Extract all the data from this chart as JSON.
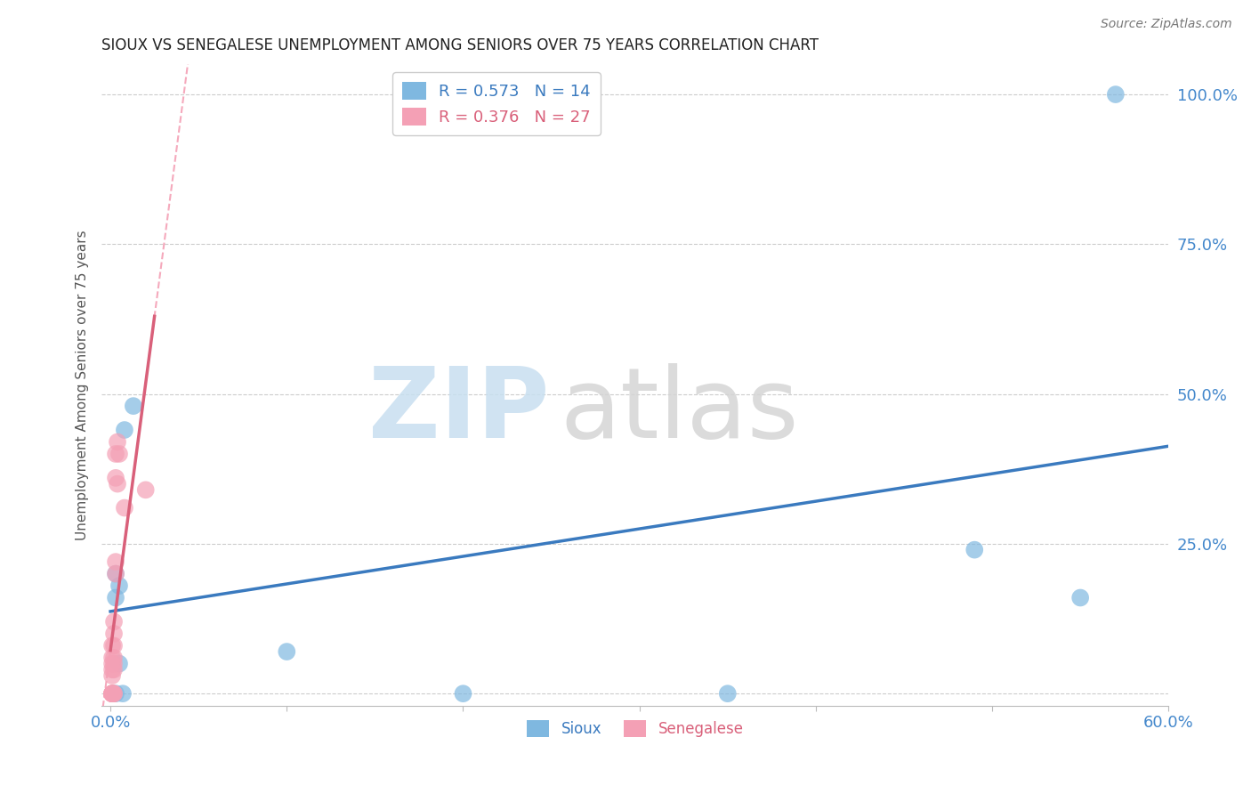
{
  "title": "SIOUX VS SENEGALESE UNEMPLOYMENT AMONG SENIORS OVER 75 YEARS CORRELATION CHART",
  "source": "Source: ZipAtlas.com",
  "ylabel": "Unemployment Among Seniors over 75 years",
  "xlim_display": [
    -0.005,
    0.6
  ],
  "ylim_display": [
    -0.02,
    1.05
  ],
  "xticks": [
    0.0,
    0.1,
    0.2,
    0.3,
    0.4,
    0.5,
    0.6
  ],
  "xticklabels": [
    "0.0%",
    "",
    "",
    "",
    "",
    "",
    "60.0%"
  ],
  "yticks": [
    0.0,
    0.25,
    0.5,
    0.75,
    1.0
  ],
  "yticklabels": [
    "",
    "25.0%",
    "50.0%",
    "75.0%",
    "100.0%"
  ],
  "sioux_color": "#7fb8e0",
  "senegalese_color": "#f4a0b5",
  "sioux_line_color": "#3a7abf",
  "senegalese_line_color": "#d9607a",
  "tick_color": "#4488cc",
  "sioux_R": 0.573,
  "sioux_N": 14,
  "senegalese_R": 0.376,
  "senegalese_N": 27,
  "sioux_x": [
    0.003,
    0.003,
    0.005,
    0.007,
    0.008,
    0.013,
    0.005,
    0.003,
    0.1,
    0.2,
    0.35,
    0.49,
    0.55,
    0.57
  ],
  "sioux_y": [
    0.2,
    0.16,
    0.18,
    0.0,
    0.44,
    0.48,
    0.05,
    0.0,
    0.07,
    0.0,
    0.0,
    0.24,
    0.16,
    1.0
  ],
  "senegalese_x": [
    0.001,
    0.001,
    0.001,
    0.001,
    0.001,
    0.001,
    0.001,
    0.001,
    0.001,
    0.001,
    0.002,
    0.002,
    0.002,
    0.002,
    0.002,
    0.002,
    0.002,
    0.002,
    0.003,
    0.003,
    0.003,
    0.003,
    0.004,
    0.004,
    0.005,
    0.008,
    0.02
  ],
  "senegalese_y": [
    0.0,
    0.0,
    0.0,
    0.0,
    0.0,
    0.03,
    0.04,
    0.05,
    0.06,
    0.08,
    0.0,
    0.0,
    0.04,
    0.05,
    0.06,
    0.08,
    0.1,
    0.12,
    0.2,
    0.22,
    0.36,
    0.4,
    0.35,
    0.42,
    0.4,
    0.31,
    0.34
  ],
  "grid_color": "#cccccc",
  "spine_color": "#bbbbbb"
}
